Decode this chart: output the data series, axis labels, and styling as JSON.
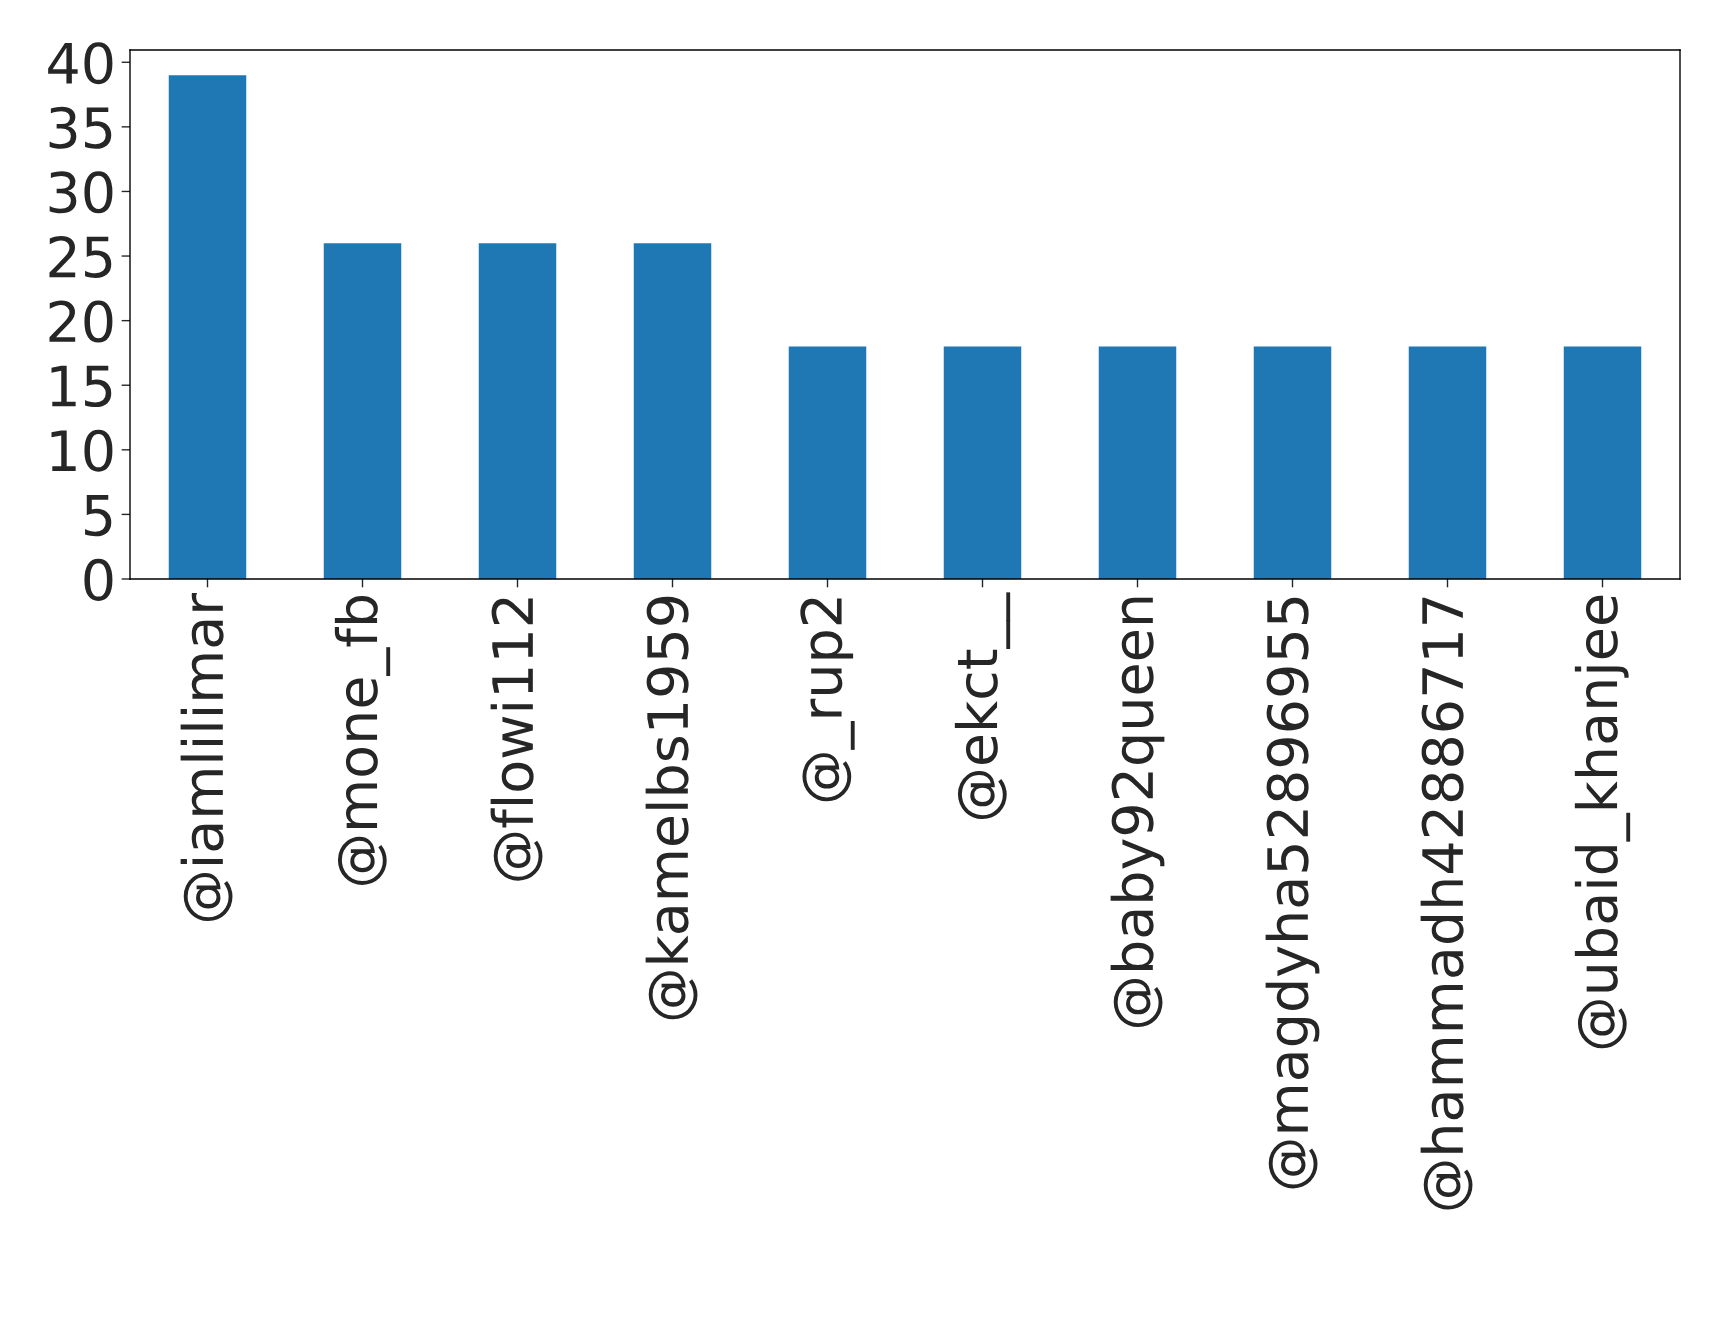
{
  "chart_data": {
    "type": "bar",
    "categories": [
      "@iamlilimar",
      "@mone_fb",
      "@flowi112",
      "@kamelbs1959",
      "@_rup2",
      "@ekct__",
      "@baby92queen",
      "@magdyha52896955",
      "@hammadh42886717",
      "@ubaid_khanjee"
    ],
    "values": [
      39,
      26,
      26,
      26,
      18,
      18,
      18,
      18,
      18,
      18
    ],
    "color": "#1f77b4",
    "ylim": [
      0,
      40.95
    ],
    "yticks": [
      0,
      5,
      10,
      15,
      20,
      25,
      30,
      35,
      40
    ],
    "grid": false,
    "legend": false
  }
}
